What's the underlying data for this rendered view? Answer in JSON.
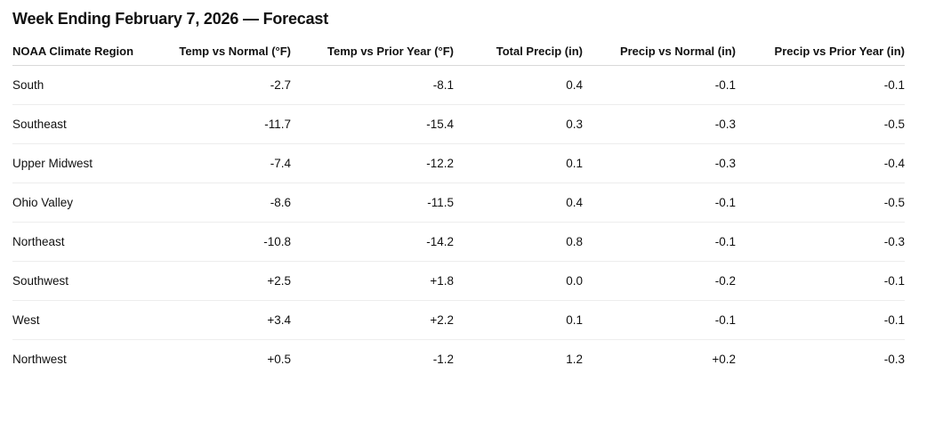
{
  "page": {
    "title": "Week Ending February 7, 2026 — Forecast"
  },
  "table": {
    "columns": [
      "NOAA Climate Region",
      "Temp vs Normal (°F)",
      "Temp vs Prior Year (°F)",
      "Total Precip (in)",
      "Precip vs Normal (in)",
      "Precip vs Prior Year (in)"
    ],
    "rows": [
      {
        "region": "South",
        "cells": [
          "-2.7",
          "-8.1",
          "0.4",
          "-0.1",
          "-0.1"
        ]
      },
      {
        "region": "Southeast",
        "cells": [
          "-11.7",
          "-15.4",
          "0.3",
          "-0.3",
          "-0.5"
        ]
      },
      {
        "region": "Upper Midwest",
        "cells": [
          "-7.4",
          "-12.2",
          "0.1",
          "-0.3",
          "-0.4"
        ]
      },
      {
        "region": "Ohio Valley",
        "cells": [
          "-8.6",
          "-11.5",
          "0.4",
          "-0.1",
          "-0.5"
        ]
      },
      {
        "region": "Northeast",
        "cells": [
          "-10.8",
          "-14.2",
          "0.8",
          "-0.1",
          "-0.3"
        ]
      },
      {
        "region": "Southwest",
        "cells": [
          "+2.5",
          "+1.8",
          "0.0",
          "-0.2",
          "-0.1"
        ]
      },
      {
        "region": "West",
        "cells": [
          "+3.4",
          "+2.2",
          "0.1",
          "-0.1",
          "-0.1"
        ]
      },
      {
        "region": "Northwest",
        "cells": [
          "+0.5",
          "-1.2",
          "1.2",
          "+0.2",
          "-0.3"
        ]
      }
    ]
  },
  "colors": {
    "background": "#ffffff",
    "text": "#111111",
    "header_border": "#d9d9d9",
    "row_border": "#ededed"
  }
}
